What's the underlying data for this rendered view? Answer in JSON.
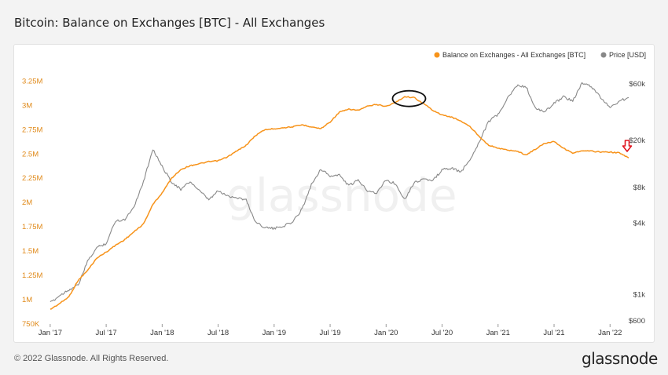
{
  "title": "Bitcoin: Balance on Exchanges [BTC] - All Exchanges",
  "footer": {
    "copyright": "© 2022 Glassnode. All Rights Reserved.",
    "logo": "glassnode"
  },
  "watermark": "glassnode",
  "colors": {
    "balance": "#f7931a",
    "price": "#888888",
    "annotation_circle": "#111111",
    "annotation_arrow": "#e0141e"
  },
  "chart_data": {
    "type": "line",
    "title": "Bitcoin: Balance on Exchanges [BTC] - All Exchanges",
    "legend": {
      "placement": "top-right",
      "entries": [
        "Balance on Exchanges - All Exchanges [BTC]",
        "Price [USD]"
      ]
    },
    "x_ticks": [
      "Jan '17",
      "Jul '17",
      "Jan '18",
      "Jul '18",
      "Jan '19",
      "Jul '19",
      "Jan '20",
      "Jul '20",
      "Jan '21",
      "Jul '21",
      "Jan '22"
    ],
    "x_tick_dates": [
      "2017-01",
      "2017-07",
      "2018-01",
      "2018-07",
      "2019-01",
      "2019-07",
      "2020-01",
      "2020-07",
      "2021-01",
      "2021-07",
      "2022-01"
    ],
    "x_range": [
      "2016-12",
      "2022-03"
    ],
    "y_left": {
      "range": [
        750000,
        3350000
      ],
      "ticks": [
        750000,
        1000000,
        1250000,
        1500000,
        1750000,
        2000000,
        2250000,
        2500000,
        2750000,
        3000000,
        3250000
      ],
      "tick_labels": [
        "750K",
        "1M",
        "1.25M",
        "1.5M",
        "1.75M",
        "2M",
        "2.25M",
        "2.5M",
        "2.75M",
        "3M",
        "3.25M"
      ]
    },
    "y_right": {
      "scale": "log",
      "ticks": [
        600,
        1000,
        4000,
        8000,
        20000,
        60000
      ],
      "tick_labels": [
        "$600",
        "$1k",
        "$4k",
        "$8k",
        "$20k",
        "$60k"
      ]
    },
    "series": [
      {
        "name": "Balance on Exchanges - All Exchanges [BTC]",
        "axis": "left",
        "points": [
          [
            "2017-01-01",
            900000
          ],
          [
            "2017-02-01",
            960000
          ],
          [
            "2017-03-01",
            1030000
          ],
          [
            "2017-04-01",
            1200000
          ],
          [
            "2017-05-01",
            1300000
          ],
          [
            "2017-06-01",
            1430000
          ],
          [
            "2017-07-01",
            1490000
          ],
          [
            "2017-08-01",
            1560000
          ],
          [
            "2017-09-01",
            1620000
          ],
          [
            "2017-10-01",
            1700000
          ],
          [
            "2017-11-01",
            1780000
          ],
          [
            "2017-12-01",
            1980000
          ],
          [
            "2018-01-01",
            2100000
          ],
          [
            "2018-02-01",
            2250000
          ],
          [
            "2018-03-01",
            2340000
          ],
          [
            "2018-04-01",
            2380000
          ],
          [
            "2018-05-01",
            2400000
          ],
          [
            "2018-06-01",
            2420000
          ],
          [
            "2018-07-01",
            2430000
          ],
          [
            "2018-08-01",
            2470000
          ],
          [
            "2018-09-01",
            2530000
          ],
          [
            "2018-10-01",
            2590000
          ],
          [
            "2018-11-01",
            2690000
          ],
          [
            "2018-12-01",
            2750000
          ],
          [
            "2019-01-01",
            2760000
          ],
          [
            "2019-02-01",
            2770000
          ],
          [
            "2019-03-01",
            2780000
          ],
          [
            "2019-04-01",
            2800000
          ],
          [
            "2019-05-01",
            2780000
          ],
          [
            "2019-06-01",
            2760000
          ],
          [
            "2019-07-01",
            2830000
          ],
          [
            "2019-08-01",
            2930000
          ],
          [
            "2019-09-01",
            2960000
          ],
          [
            "2019-10-01",
            2950000
          ],
          [
            "2019-11-01",
            2990000
          ],
          [
            "2019-12-01",
            3010000
          ],
          [
            "2020-01-01",
            2990000
          ],
          [
            "2020-02-01",
            3030000
          ],
          [
            "2020-03-01",
            3090000
          ],
          [
            "2020-04-01",
            3080000
          ],
          [
            "2020-05-01",
            3020000
          ],
          [
            "2020-06-01",
            2950000
          ],
          [
            "2020-07-01",
            2900000
          ],
          [
            "2020-08-01",
            2880000
          ],
          [
            "2020-09-01",
            2840000
          ],
          [
            "2020-10-01",
            2780000
          ],
          [
            "2020-11-01",
            2680000
          ],
          [
            "2020-12-01",
            2590000
          ],
          [
            "2021-01-01",
            2560000
          ],
          [
            "2021-02-01",
            2540000
          ],
          [
            "2021-03-01",
            2530000
          ],
          [
            "2021-04-01",
            2490000
          ],
          [
            "2021-05-01",
            2550000
          ],
          [
            "2021-06-01",
            2610000
          ],
          [
            "2021-07-01",
            2630000
          ],
          [
            "2021-08-01",
            2560000
          ],
          [
            "2021-09-01",
            2510000
          ],
          [
            "2021-10-01",
            2530000
          ],
          [
            "2021-11-01",
            2530000
          ],
          [
            "2021-12-01",
            2520000
          ],
          [
            "2022-01-01",
            2520000
          ],
          [
            "2022-02-01",
            2510000
          ],
          [
            "2022-03-01",
            2460000
          ]
        ]
      },
      {
        "name": "Price [USD]",
        "axis": "right",
        "points": [
          [
            "2017-01-01",
            850
          ],
          [
            "2017-02-01",
            980
          ],
          [
            "2017-03-01",
            1100
          ],
          [
            "2017-04-01",
            1200
          ],
          [
            "2017-05-01",
            1900
          ],
          [
            "2017-06-01",
            2500
          ],
          [
            "2017-07-01",
            2700
          ],
          [
            "2017-08-01",
            4200
          ],
          [
            "2017-09-01",
            4300
          ],
          [
            "2017-10-01",
            5600
          ],
          [
            "2017-11-01",
            9000
          ],
          [
            "2017-12-01",
            17000
          ],
          [
            "2018-01-01",
            12000
          ],
          [
            "2018-02-01",
            9000
          ],
          [
            "2018-03-01",
            7700
          ],
          [
            "2018-04-01",
            9000
          ],
          [
            "2018-05-01",
            7500
          ],
          [
            "2018-06-01",
            6300
          ],
          [
            "2018-07-01",
            7500
          ],
          [
            "2018-08-01",
            6800
          ],
          [
            "2018-09-01",
            6600
          ],
          [
            "2018-10-01",
            6300
          ],
          [
            "2018-11-01",
            4100
          ],
          [
            "2018-12-01",
            3700
          ],
          [
            "2019-01-01",
            3600
          ],
          [
            "2019-02-01",
            3800
          ],
          [
            "2019-03-01",
            4100
          ],
          [
            "2019-04-01",
            5300
          ],
          [
            "2019-05-01",
            8500
          ],
          [
            "2019-06-01",
            11500
          ],
          [
            "2019-07-01",
            10000
          ],
          [
            "2019-08-01",
            10200
          ],
          [
            "2019-09-01",
            8300
          ],
          [
            "2019-10-01",
            9200
          ],
          [
            "2019-11-01",
            7600
          ],
          [
            "2019-12-01",
            7200
          ],
          [
            "2020-01-01",
            9300
          ],
          [
            "2020-02-01",
            8600
          ],
          [
            "2020-03-01",
            6400
          ],
          [
            "2020-04-01",
            8800
          ],
          [
            "2020-05-01",
            9500
          ],
          [
            "2020-06-01",
            9100
          ],
          [
            "2020-07-01",
            11300
          ],
          [
            "2020-08-01",
            11700
          ],
          [
            "2020-09-01",
            10800
          ],
          [
            "2020-10-01",
            13800
          ],
          [
            "2020-11-01",
            19700
          ],
          [
            "2020-12-01",
            29000
          ],
          [
            "2021-01-01",
            33000
          ],
          [
            "2021-02-01",
            45000
          ],
          [
            "2021-03-01",
            58000
          ],
          [
            "2021-04-01",
            57000
          ],
          [
            "2021-05-01",
            37000
          ],
          [
            "2021-06-01",
            35000
          ],
          [
            "2021-07-01",
            41000
          ],
          [
            "2021-08-01",
            47000
          ],
          [
            "2021-09-01",
            43000
          ],
          [
            "2021-10-01",
            61000
          ],
          [
            "2021-11-01",
            57000
          ],
          [
            "2021-12-01",
            46000
          ],
          [
            "2022-01-01",
            38000
          ],
          [
            "2022-02-01",
            43000
          ],
          [
            "2022-03-01",
            46000
          ]
        ]
      }
    ],
    "annotations": [
      {
        "type": "circle",
        "target": "balance-peak",
        "date": "2020-03-15"
      },
      {
        "type": "down-arrow",
        "target": "latest-balance",
        "date": "2022-03-01"
      }
    ]
  }
}
